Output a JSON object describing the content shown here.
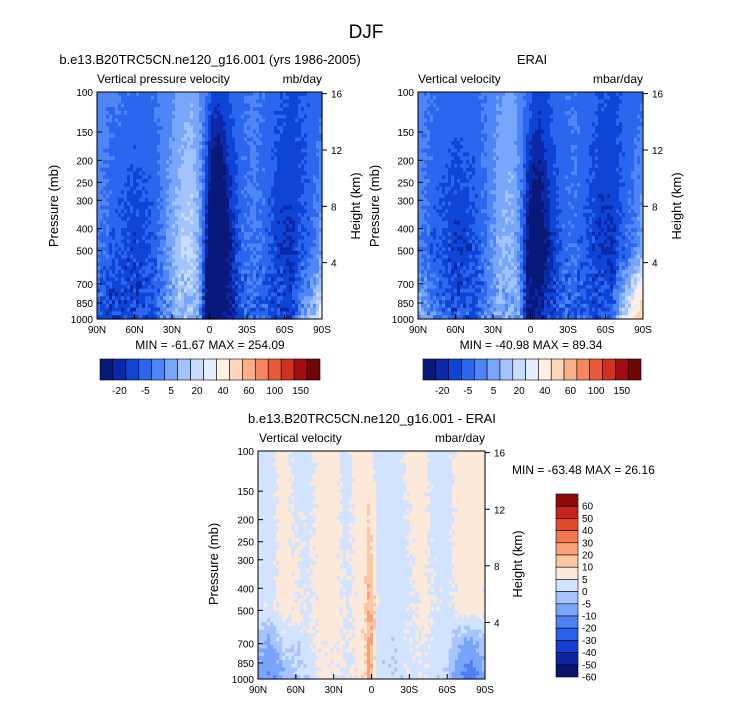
{
  "figure": {
    "title": "DJF"
  },
  "colors": {
    "full_palette": [
      "#08197a",
      "#0a28a8",
      "#0f45d6",
      "#2a66ee",
      "#4f86f7",
      "#78a6fb",
      "#a3c3fe",
      "#c8dcff",
      "#e3eeff",
      "#fff0e2",
      "#fdd6ba",
      "#fbb08a",
      "#f68660",
      "#ea5a3a",
      "#cf3020",
      "#a10d10",
      "#6e0508"
    ],
    "diff_palette": [
      "#06146e",
      "#0a24a6",
      "#123fd0",
      "#2b60ea",
      "#4c80f4",
      "#7aa3fa",
      "#a7c4fd",
      "#d2e3ff",
      "#fde9da",
      "#fbc8a6",
      "#f9a27a",
      "#f27850",
      "#e34a2d",
      "#c4231a",
      "#8f0a0b"
    ]
  },
  "chart_data": [
    {
      "type": "heatmap",
      "title": "b.e13.B20TRC5CN.ne120_g16.001 (yrs 1986-2005)",
      "left_label": "Vertical pressure velocity",
      "right_label": "mb/day",
      "xlabel": "",
      "ylabel": "Pressure (mb)",
      "ylabel_right": "Height (km)",
      "x_ticks": [
        "90N",
        "60N",
        "30N",
        "0",
        "30S",
        "60S",
        "90S"
      ],
      "x_values": [
        90,
        60,
        30,
        0,
        -30,
        -60,
        -90
      ],
      "xlim": [
        90,
        -90
      ],
      "y_ticks": [
        "100",
        "150",
        "200",
        "250",
        "300",
        "400",
        "500",
        "700",
        "850",
        "1000"
      ],
      "y_values": [
        100,
        150,
        200,
        250,
        300,
        400,
        500,
        700,
        850,
        1000
      ],
      "ylim": [
        1000,
        100
      ],
      "y_right_ticks": [
        "16",
        "12",
        "8",
        "4"
      ],
      "y_right_values": [
        16,
        12,
        8,
        4
      ],
      "stats": "MIN = -61.67  MAX = 254.09",
      "colorbar": {
        "orientation": "horizontal",
        "labels": [
          "-20",
          "-5",
          "5",
          "20",
          "40",
          "60",
          "100",
          "150"
        ]
      },
      "field_levels": [
        {
          "lat": [
            90,
            80,
            60,
            45,
            35,
            25,
            15,
            8,
            3,
            -2,
            -8,
            -15,
            -25,
            -35,
            -45,
            -55,
            -65,
            -75,
            -85,
            -90
          ],
          "p100": [
            -2,
            -4,
            -6,
            -6,
            -3,
            1,
            4,
            0,
            -5,
            -10,
            -13,
            -10,
            -6,
            -4,
            -6,
            -9,
            -11,
            -10,
            -8,
            -7
          ],
          "p500": [
            -4,
            -8,
            -14,
            -10,
            -1,
            8,
            12,
            4,
            -15,
            -38,
            -40,
            -22,
            -7,
            -4,
            -8,
            -14,
            -16,
            -10,
            -4,
            2
          ],
          "p1000": [
            -9,
            -14,
            -12,
            -10,
            -2,
            5,
            6,
            2,
            -24,
            -32,
            -28,
            -20,
            -9,
            -6,
            -10,
            -12,
            -14,
            2,
            8,
            24
          ]
        }
      ]
    },
    {
      "type": "heatmap",
      "title": "ERAI",
      "left_label": "Vertical velocity",
      "right_label": "mbar/day",
      "xlabel": "",
      "ylabel": "Pressure (mb)",
      "ylabel_right": "Height (km)",
      "x_ticks": [
        "90N",
        "60N",
        "30N",
        "0",
        "30S",
        "60S",
        "90S"
      ],
      "x_values": [
        90,
        60,
        30,
        0,
        -30,
        -60,
        -90
      ],
      "xlim": [
        90,
        -90
      ],
      "y_ticks": [
        "100",
        "150",
        "200",
        "250",
        "300",
        "400",
        "500",
        "700",
        "850",
        "1000"
      ],
      "y_values": [
        100,
        150,
        200,
        250,
        300,
        400,
        500,
        700,
        850,
        1000
      ],
      "ylim": [
        1000,
        100
      ],
      "y_right_ticks": [
        "16",
        "12",
        "8",
        "4"
      ],
      "y_right_values": [
        16,
        12,
        8,
        4
      ],
      "stats": "MIN = -40.98  MAX =  89.34",
      "colorbar": {
        "orientation": "horizontal",
        "labels": [
          "-20",
          "-5",
          "5",
          "20",
          "40",
          "60",
          "100",
          "150"
        ]
      },
      "field_levels": [
        {
          "lat": [
            90,
            80,
            60,
            45,
            35,
            25,
            15,
            8,
            3,
            -2,
            -8,
            -15,
            -25,
            -35,
            -45,
            -55,
            -65,
            -75,
            -85,
            -90
          ],
          "p100": [
            -3,
            -5,
            -7,
            -7,
            -4,
            0,
            2,
            -2,
            -6,
            -10,
            -12,
            -9,
            -6,
            -5,
            -7,
            -10,
            -11,
            -9,
            -7,
            -6
          ],
          "p500": [
            -3,
            -8,
            -15,
            -12,
            -4,
            4,
            6,
            -2,
            -20,
            -30,
            -28,
            -18,
            -8,
            -6,
            -10,
            -15,
            -16,
            -8,
            -2,
            4
          ],
          "p1000": [
            6,
            -2,
            -10,
            -10,
            -3,
            3,
            4,
            0,
            -18,
            -20,
            -18,
            -12,
            -7,
            -7,
            -10,
            -12,
            -8,
            12,
            30,
            45
          ]
        }
      ]
    },
    {
      "type": "heatmap",
      "title": "b.e13.B20TRC5CN.ne120_g16.001 - ERAI",
      "left_label": "Vertical velocity",
      "right_label": "mbar/day",
      "xlabel": "",
      "ylabel": "Pressure (mb)",
      "ylabel_right": "Height (km)",
      "x_ticks": [
        "90N",
        "60N",
        "30N",
        "0",
        "30S",
        "60S",
        "90S"
      ],
      "x_values": [
        90,
        60,
        30,
        0,
        -30,
        -60,
        -90
      ],
      "xlim": [
        90,
        -90
      ],
      "y_ticks": [
        "100",
        "150",
        "200",
        "250",
        "300",
        "400",
        "500",
        "700",
        "850",
        "1000"
      ],
      "y_values": [
        100,
        150,
        200,
        250,
        300,
        400,
        500,
        700,
        850,
        1000
      ],
      "ylim": [
        1000,
        100
      ],
      "y_right_ticks": [
        "16",
        "12",
        "8",
        "4"
      ],
      "y_right_values": [
        16,
        12,
        8,
        4
      ],
      "stats": "MIN = -63.48  MAX = 26.16",
      "colorbar": {
        "orientation": "vertical",
        "labels": [
          "60",
          "50",
          "40",
          "30",
          "20",
          "10",
          "5",
          "0",
          "-5",
          "-10",
          "-20",
          "-30",
          "-40",
          "-50",
          "-60"
        ]
      },
      "field_levels": [
        {
          "lat": [
            90,
            80,
            70,
            60,
            50,
            40,
            30,
            20,
            10,
            5,
            2,
            -2,
            -5,
            -10,
            -20,
            -30,
            -40,
            -50,
            -60,
            -70,
            -80,
            -90
          ],
          "p100": [
            -1,
            -1,
            1,
            -1,
            -1,
            1,
            1,
            -1,
            1,
            2,
            1,
            -1,
            -1,
            -1,
            -1,
            1,
            1,
            -1,
            -1,
            1,
            1,
            1
          ],
          "p500": [
            -1,
            -2,
            2,
            1,
            -1,
            2,
            2,
            -1,
            2,
            4,
            12,
            6,
            -2,
            -2,
            -3,
            -1,
            2,
            -1,
            -2,
            2,
            3,
            1
          ],
          "p1000": [
            -14,
            -22,
            -10,
            -8,
            -3,
            2,
            2,
            -1,
            2,
            4,
            14,
            4,
            -3,
            -3,
            -3,
            -2,
            -1,
            -3,
            -4,
            -20,
            -30,
            -10
          ]
        }
      ]
    }
  ]
}
